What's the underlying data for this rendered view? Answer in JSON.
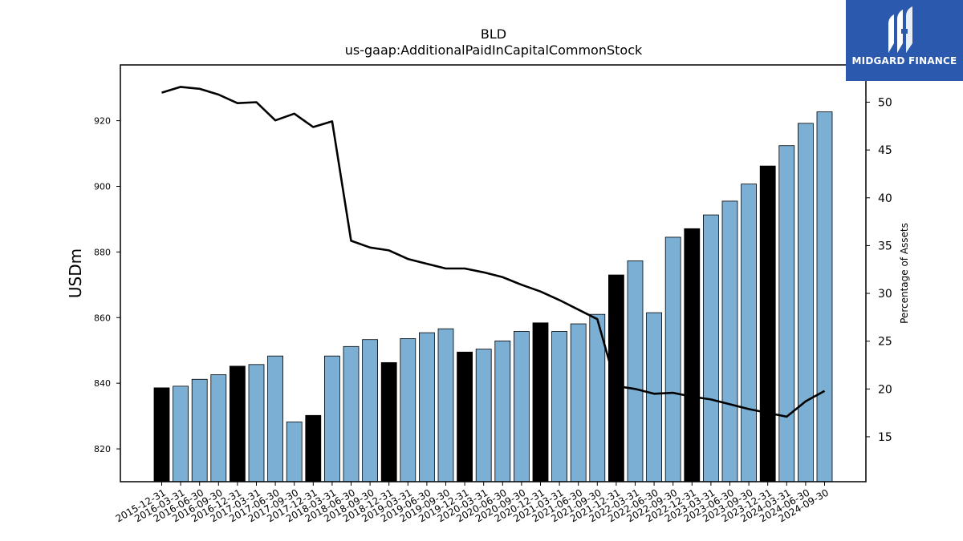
{
  "chart_data": {
    "type": "bar",
    "title": "BLD",
    "subtitle": "us-gaap:AdditionalPaidInCapitalCommonStock",
    "ylabel": "USDm",
    "y2label": "Percentage of Assets",
    "ylim": [
      810,
      937
    ],
    "y2lim": [
      10.3,
      53.9
    ],
    "yticks": [
      820,
      840,
      860,
      880,
      900,
      920
    ],
    "y2ticks": [
      15,
      20,
      25,
      30,
      35,
      40,
      45,
      50
    ],
    "categories": [
      "2015-12-31",
      "2016-03-31",
      "2016-06-30",
      "2016-09-30",
      "2016-12-31",
      "2017-03-31",
      "2017-06-30",
      "2017-09-30",
      "2017-12-31",
      "2018-03-31",
      "2018-06-30",
      "2018-09-30",
      "2018-12-31",
      "2019-03-31",
      "2019-06-30",
      "2019-09-30",
      "2019-12-31",
      "2020-03-31",
      "2020-06-30",
      "2020-09-30",
      "2020-12-31",
      "2021-03-31",
      "2021-06-30",
      "2021-09-30",
      "2021-12-31",
      "2022-03-31",
      "2022-06-30",
      "2022-09-30",
      "2022-12-31",
      "2023-03-31",
      "2023-06-30",
      "2023-09-30",
      "2023-12-31",
      "2024-03-31",
      "2024-06-30",
      "2024-09-30"
    ],
    "series": [
      {
        "kind": "bar",
        "values": [
          838.6,
          839.1,
          841.2,
          842.6,
          845.2,
          845.7,
          848.3,
          828.2,
          830.2,
          848.3,
          851.2,
          853.3,
          846.3,
          853.6,
          855.4,
          856.6,
          849.5,
          850.4,
          852.9,
          855.8,
          858.4,
          855.8,
          858.1,
          861.0,
          873.0,
          877.3,
          861.5,
          884.5,
          887.1,
          891.3,
          895.5,
          900.7,
          906.2,
          912.4,
          919.2,
          922.7
        ],
        "annual_flags": [
          true,
          false,
          false,
          false,
          true,
          false,
          false,
          false,
          true,
          false,
          false,
          false,
          true,
          false,
          false,
          false,
          true,
          false,
          false,
          false,
          true,
          false,
          false,
          false,
          true,
          false,
          false,
          false,
          true,
          false,
          false,
          false,
          true,
          false,
          false,
          false
        ]
      },
      {
        "kind": "line",
        "axis": "right",
        "values": [
          51.0,
          51.6,
          51.4,
          50.8,
          49.9,
          50.0,
          48.1,
          48.8,
          47.4,
          48.0,
          35.5,
          34.8,
          34.5,
          33.6,
          33.1,
          32.6,
          32.6,
          32.2,
          31.7,
          30.9,
          30.2,
          29.3,
          28.3,
          27.3,
          20.3,
          20.0,
          19.5,
          19.6,
          19.2,
          18.9,
          18.4,
          17.9,
          17.5,
          17.1,
          18.7,
          19.8
        ]
      }
    ],
    "colors": {
      "quarter_bar": "#7bafd4",
      "annual_bar": "#000000",
      "line": "#000000"
    }
  },
  "logo": {
    "text": "MIDGARD FINANCE"
  }
}
